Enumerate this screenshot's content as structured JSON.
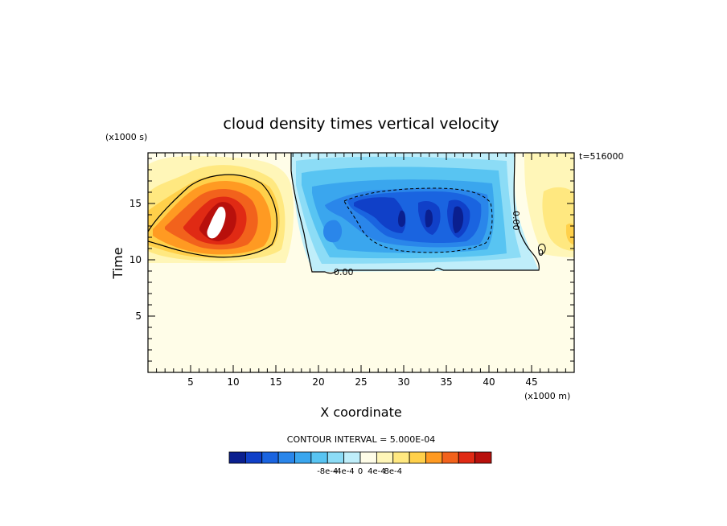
{
  "chart_data": {
    "type": "heatmap",
    "title": "cloud density times vertical velocity",
    "xlabel": "X coordinate",
    "ylabel": "Time",
    "x_units": "(x1000 m)",
    "y_units": "(x1000 s)",
    "time_stamp": "t=516000",
    "xlim": [
      0,
      50
    ],
    "ylim": [
      0,
      19.5
    ],
    "x_ticks": [
      5,
      10,
      15,
      20,
      25,
      30,
      35,
      40,
      45
    ],
    "y_ticks": [
      5,
      10,
      15
    ],
    "contour_interval_label": "CONTOUR INTERVAL = 5.000E-04",
    "contour_labels": [
      "0.00",
      "0.00",
      "0"
    ],
    "colorbar": {
      "tick_labels": [
        "-8e-4",
        "-4e-4",
        "0",
        "4e-4",
        "8e-4"
      ],
      "tick_values": [
        -0.0008,
        -0.0004,
        0,
        0.0004,
        0.0008
      ],
      "colors": [
        "#0a1f8f",
        "#1040c8",
        "#1a64e0",
        "#2a86ea",
        "#3aa6ee",
        "#58c4f2",
        "#8cdcf6",
        "#bfeefa",
        "#fffde8",
        "#fff6b8",
        "#ffe880",
        "#ffd04a",
        "#ff9a22",
        "#f2621c",
        "#e02a14",
        "#b8100c"
      ]
    },
    "features": [
      {
        "name": "positive maximum",
        "x": 8.0,
        "y": 13.5,
        "value": 0.001,
        "sign": "positive"
      },
      {
        "name": "negative region",
        "x": 30.0,
        "y": 14.0,
        "value": -0.0008,
        "sign": "negative"
      },
      {
        "name": "positive region right edge",
        "x": 48.5,
        "y": 13.0,
        "value": 0.00025,
        "sign": "positive"
      }
    ]
  }
}
